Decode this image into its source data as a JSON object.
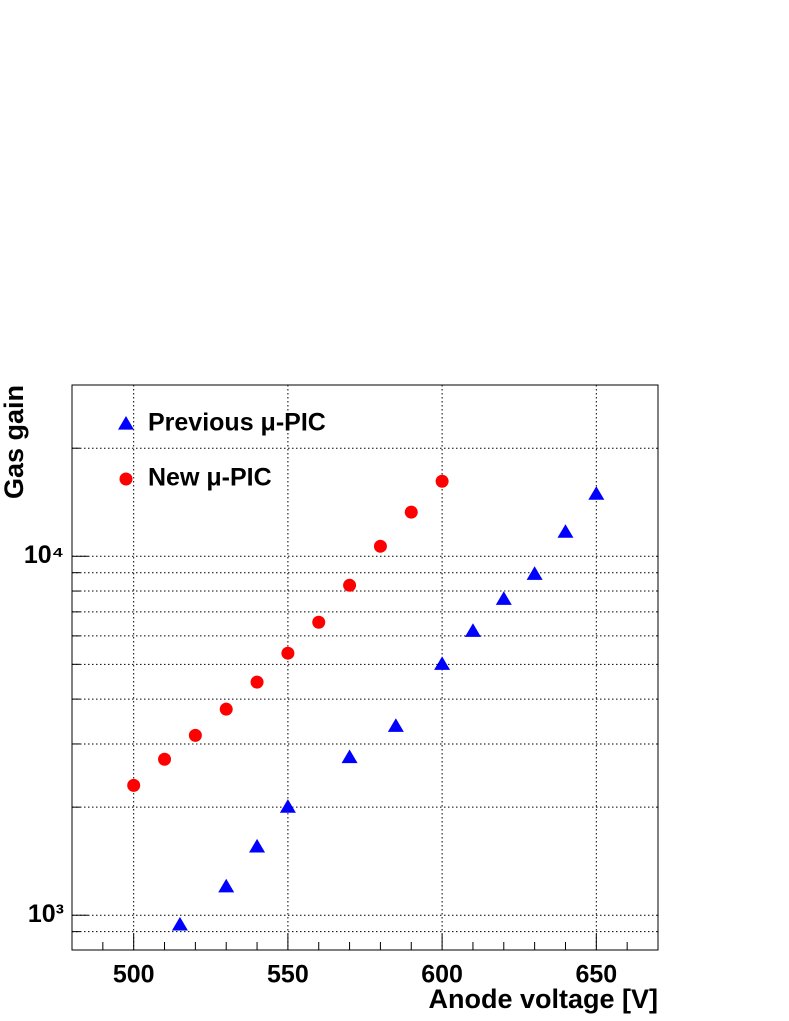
{
  "chart_data": {
    "type": "scatter",
    "xlabel": "Anode voltage [V]",
    "ylabel": "Gas gain",
    "xlim": [
      480,
      670
    ],
    "xticks": [
      500,
      550,
      600,
      650
    ],
    "xminorticks": [
      490,
      510,
      520,
      530,
      540,
      560,
      570,
      580,
      590,
      610,
      620,
      630,
      640,
      660
    ],
    "ylim": [
      800,
      30000
    ],
    "ylog": true,
    "yticks": [
      {
        "value": 1000,
        "label": "10³"
      },
      {
        "value": 10000,
        "label": "10⁴"
      }
    ],
    "yminorticks": [
      900,
      2000,
      3000,
      4000,
      5000,
      6000,
      7000,
      8000,
      9000,
      20000
    ],
    "grid": true,
    "legend": "upper left",
    "series": [
      {
        "name": "Previous μ-PIC",
        "color": "#0000ff",
        "marker": "triangle",
        "x": [
          515,
          530,
          540,
          550,
          570,
          585,
          600,
          610,
          620,
          630,
          640,
          650
        ],
        "values": [
          940,
          1200,
          1550,
          2000,
          2750,
          3360,
          5000,
          6180,
          7590,
          8910,
          11670,
          14890
        ]
      },
      {
        "name": "New μ-PIC",
        "color": "#ff0000",
        "marker": "circle",
        "x": [
          500,
          510,
          520,
          530,
          540,
          550,
          560,
          570,
          580,
          590,
          600
        ],
        "values": [
          2300,
          2720,
          3170,
          3750,
          4460,
          5370,
          6550,
          8300,
          10660,
          13270,
          16180
        ]
      }
    ]
  }
}
